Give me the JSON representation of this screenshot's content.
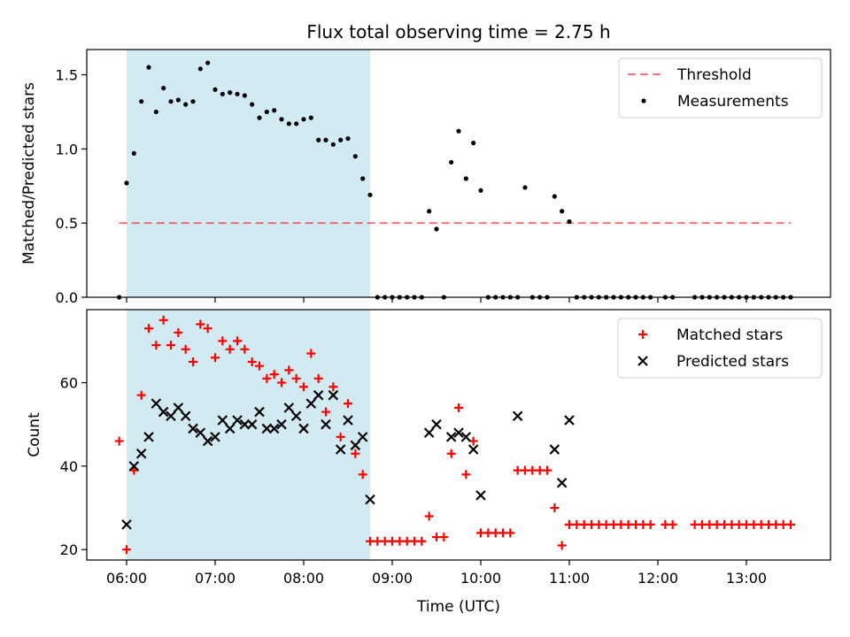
{
  "title": "Flux total observing time = 2.75 h",
  "colors": {
    "shade": "#add8e6",
    "threshold": "#ff0000",
    "measurements": "#000000",
    "matched": "#ff0000",
    "predicted": "#000000"
  },
  "chart_data": [
    {
      "type": "scatter",
      "ylabel": "Matched/Predicted stars",
      "ylim": [
        0,
        1.67
      ],
      "yticks": [
        "0.0",
        "0.5",
        "1.0",
        "1.5"
      ],
      "xlim": [
        "05:33",
        "13:57"
      ],
      "shaded_span": [
        "06:00",
        "08:45"
      ],
      "threshold": {
        "name": "Threshold",
        "value": 0.5,
        "x": [
          "05:55",
          "13:30"
        ],
        "style": "dashed"
      },
      "legend": {
        "placement": "top-right",
        "entries": [
          "Threshold",
          "Measurements"
        ]
      },
      "series": [
        {
          "name": "Measurements",
          "x": [
            "05:55",
            "06:00",
            "06:05",
            "06:10",
            "06:15",
            "06:20",
            "06:25",
            "06:30",
            "06:35",
            "06:40",
            "06:45",
            "06:50",
            "06:55",
            "07:00",
            "07:05",
            "07:10",
            "07:15",
            "07:20",
            "07:25",
            "07:30",
            "07:35",
            "07:40",
            "07:45",
            "07:50",
            "07:55",
            "08:00",
            "08:05",
            "08:10",
            "08:15",
            "08:20",
            "08:25",
            "08:30",
            "08:35",
            "08:40",
            "08:45",
            "08:50",
            "08:55",
            "09:00",
            "09:05",
            "09:10",
            "09:15",
            "09:20",
            "09:25",
            "09:30",
            "09:35",
            "09:40",
            "09:45",
            "09:50",
            "09:55",
            "10:00",
            "10:05",
            "10:10",
            "10:15",
            "10:20",
            "10:25",
            "10:30",
            "10:35",
            "10:40",
            "10:45",
            "10:50",
            "10:55",
            "11:00",
            "11:05",
            "11:10",
            "11:15",
            "11:20",
            "11:25",
            "11:30",
            "11:35",
            "11:40",
            "11:45",
            "11:50",
            "11:55",
            "12:05",
            "12:10",
            "12:25",
            "12:30",
            "12:35",
            "12:40",
            "12:45",
            "12:50",
            "12:55",
            "13:00",
            "13:05",
            "13:10",
            "13:15",
            "13:20",
            "13:25",
            "13:30"
          ],
          "y": [
            0,
            0.77,
            0.97,
            1.32,
            1.55,
            1.25,
            1.41,
            1.32,
            1.33,
            1.3,
            1.32,
            1.54,
            1.58,
            1.4,
            1.37,
            1.38,
            1.37,
            1.36,
            1.3,
            1.21,
            1.25,
            1.26,
            1.2,
            1.17,
            1.17,
            1.2,
            1.21,
            1.06,
            1.06,
            1.03,
            1.06,
            1.07,
            0.95,
            0.8,
            0.69,
            0,
            0,
            0,
            0,
            0,
            0,
            0,
            0.58,
            0.46,
            0,
            0.91,
            1.12,
            0.8,
            1.04,
            0.72,
            0,
            0,
            0,
            0,
            0,
            0.74,
            0,
            0,
            0,
            0.68,
            0.58,
            0.51,
            0,
            0,
            0,
            0,
            0,
            0,
            0,
            0,
            0,
            0,
            0,
            0,
            0,
            0,
            0,
            0,
            0,
            0,
            0,
            0,
            0,
            0,
            0,
            0,
            0,
            0,
            0
          ]
        }
      ]
    },
    {
      "type": "scatter",
      "xlabel": "Time (UTC)",
      "ylabel": "Count",
      "ylim": [
        17.5,
        77.5
      ],
      "yticks": [
        "20",
        "40",
        "60"
      ],
      "xlim": [
        "05:33",
        "13:57"
      ],
      "xticks": [
        "06:00",
        "07:00",
        "08:00",
        "09:00",
        "10:00",
        "11:00",
        "12:00",
        "13:00"
      ],
      "shaded_span": [
        "06:00",
        "08:45"
      ],
      "legend": {
        "placement": "top-right",
        "entries": [
          "Matched stars",
          "Predicted stars"
        ]
      },
      "series": [
        {
          "name": "Matched stars",
          "marker": "+",
          "x": [
            "05:55",
            "06:00",
            "06:05",
            "06:10",
            "06:15",
            "06:20",
            "06:25",
            "06:30",
            "06:35",
            "06:40",
            "06:45",
            "06:50",
            "06:55",
            "07:00",
            "07:05",
            "07:10",
            "07:15",
            "07:20",
            "07:25",
            "07:30",
            "07:35",
            "07:40",
            "07:45",
            "07:50",
            "07:55",
            "08:00",
            "08:05",
            "08:10",
            "08:15",
            "08:20",
            "08:25",
            "08:30",
            "08:35",
            "08:40",
            "08:45",
            "08:50",
            "08:55",
            "09:00",
            "09:05",
            "09:10",
            "09:15",
            "09:20",
            "09:25",
            "09:30",
            "09:35",
            "09:40",
            "09:45",
            "09:50",
            "09:55",
            "10:00",
            "10:05",
            "10:10",
            "10:15",
            "10:20",
            "10:25",
            "10:30",
            "10:35",
            "10:40",
            "10:45",
            "10:50",
            "10:55",
            "11:00",
            "11:05",
            "11:10",
            "11:15",
            "11:20",
            "11:25",
            "11:30",
            "11:35",
            "11:40",
            "11:45",
            "11:50",
            "11:55",
            "12:05",
            "12:10",
            "12:25",
            "12:30",
            "12:35",
            "12:40",
            "12:45",
            "12:50",
            "12:55",
            "13:00",
            "13:05",
            "13:10",
            "13:15",
            "13:20",
            "13:25",
            "13:30"
          ],
          "y": [
            46,
            20,
            39,
            57,
            73,
            69,
            75,
            69,
            72,
            68,
            65,
            74,
            73,
            66,
            70,
            68,
            70,
            68,
            65,
            64,
            61,
            62,
            60,
            63,
            61,
            59,
            67,
            61,
            53,
            59,
            47,
            55,
            43,
            38,
            22,
            22,
            22,
            22,
            22,
            22,
            22,
            22,
            28,
            23,
            23,
            43,
            54,
            38,
            46,
            24,
            24,
            24,
            24,
            24,
            39,
            39,
            39,
            39,
            39,
            30,
            21,
            26,
            26,
            26,
            26,
            26,
            26,
            26,
            26,
            26,
            26,
            26,
            26,
            26,
            26,
            26,
            26,
            26,
            26,
            26,
            26,
            26,
            26,
            26,
            26,
            26,
            26,
            26,
            26
          ]
        },
        {
          "name": "Predicted stars",
          "marker": "x",
          "x": [
            "06:00",
            "06:05",
            "06:10",
            "06:15",
            "06:20",
            "06:25",
            "06:30",
            "06:35",
            "06:40",
            "06:45",
            "06:50",
            "06:55",
            "07:00",
            "07:05",
            "07:10",
            "07:15",
            "07:20",
            "07:25",
            "07:30",
            "07:35",
            "07:40",
            "07:45",
            "07:50",
            "07:55",
            "08:00",
            "08:05",
            "08:10",
            "08:15",
            "08:20",
            "08:25",
            "08:30",
            "08:35",
            "08:40",
            "08:45",
            "09:25",
            "09:30",
            "09:40",
            "09:45",
            "09:50",
            "09:55",
            "10:00",
            "10:25",
            "10:50",
            "10:55",
            "11:00"
          ],
          "y": [
            26,
            40,
            43,
            47,
            55,
            53,
            52,
            54,
            52,
            49,
            48,
            46,
            47,
            51,
            49,
            51,
            50,
            50,
            53,
            49,
            49,
            50,
            54,
            52,
            49,
            55,
            57,
            50,
            57,
            44,
            51,
            45,
            47,
            32,
            48,
            50,
            47,
            48,
            47,
            44,
            33,
            52,
            44,
            36,
            51
          ]
        }
      ]
    }
  ]
}
